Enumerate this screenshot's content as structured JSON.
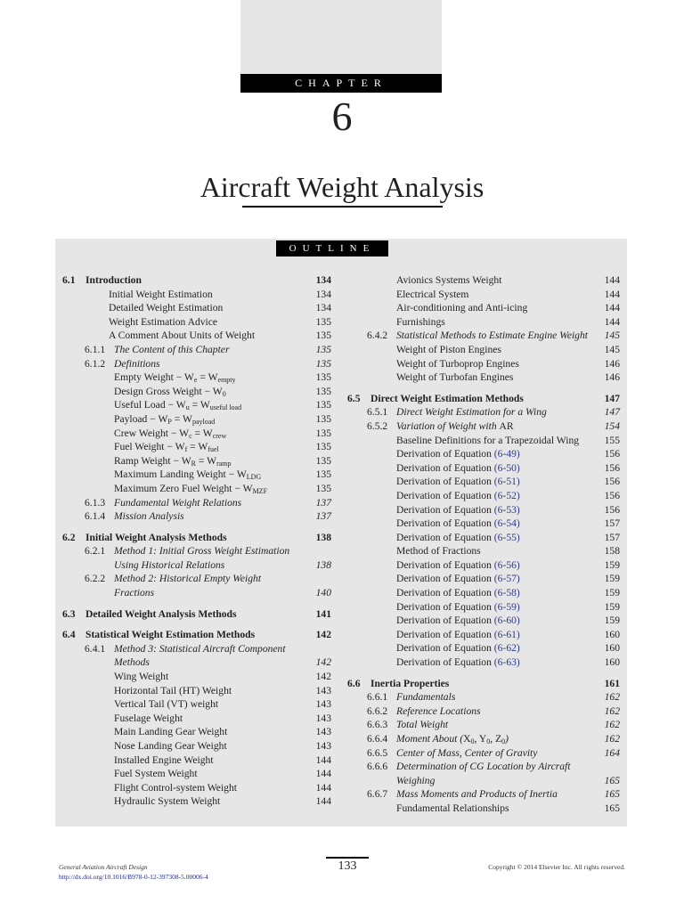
{
  "header": {
    "chapter_label": "CHAPTER",
    "chapter_number": "6",
    "title": "Aircraft Weight Analysis"
  },
  "outline": {
    "label": "OUTLINE",
    "colors": {
      "link": "#2b3a8f",
      "panel": "#e6e6e6"
    },
    "left": [
      {
        "type": "h",
        "num": "6.1",
        "segs": [
          {
            "t": "Introduction"
          }
        ],
        "page": "134"
      },
      {
        "type": "e",
        "indent": 1,
        "segs": [
          {
            "t": "Initial Weight Estimation"
          }
        ],
        "page": "134"
      },
      {
        "type": "e",
        "indent": 1,
        "segs": [
          {
            "t": "Detailed Weight Estimation"
          }
        ],
        "page": "134"
      },
      {
        "type": "e",
        "indent": 1,
        "segs": [
          {
            "t": "Weight Estimation Advice"
          }
        ],
        "page": "135"
      },
      {
        "type": "e",
        "indent": 1,
        "segs": [
          {
            "t": "A Comment About Units of Weight"
          }
        ],
        "page": "135"
      },
      {
        "type": "s",
        "num": "6.1.1",
        "segs": [
          {
            "t": "The Content of this Chapter"
          }
        ],
        "page": "135"
      },
      {
        "type": "s",
        "num": "6.1.2",
        "segs": [
          {
            "t": "Definitions"
          }
        ],
        "page": "135"
      },
      {
        "type": "e",
        "indent": 2,
        "segs": [
          {
            "t": "Empty Weight − W"
          },
          {
            "sub": "e"
          },
          {
            "t": " = W"
          },
          {
            "sub": "empty"
          }
        ],
        "page": "135"
      },
      {
        "type": "e",
        "indent": 2,
        "segs": [
          {
            "t": "Design Gross Weight − W"
          },
          {
            "sub": "0"
          }
        ],
        "page": "135"
      },
      {
        "type": "e",
        "indent": 2,
        "segs": [
          {
            "t": "Useful Load − W"
          },
          {
            "sub": "u"
          },
          {
            "t": " = W"
          },
          {
            "sub": "useful load"
          }
        ],
        "page": "135"
      },
      {
        "type": "e",
        "indent": 2,
        "segs": [
          {
            "t": "Payload − W"
          },
          {
            "sub": "P"
          },
          {
            "t": " = W"
          },
          {
            "sub": "payload"
          }
        ],
        "page": "135"
      },
      {
        "type": "e",
        "indent": 2,
        "segs": [
          {
            "t": "Crew Weight − W"
          },
          {
            "sub": "c"
          },
          {
            "t": " = W"
          },
          {
            "sub": "crew"
          }
        ],
        "page": "135"
      },
      {
        "type": "e",
        "indent": 2,
        "segs": [
          {
            "t": "Fuel Weight − W"
          },
          {
            "sub": "f"
          },
          {
            "t": " = W"
          },
          {
            "sub": "fuel"
          }
        ],
        "page": "135"
      },
      {
        "type": "e",
        "indent": 2,
        "segs": [
          {
            "t": "Ramp Weight − W"
          },
          {
            "sub": "R"
          },
          {
            "t": " = W"
          },
          {
            "sub": "ramp"
          }
        ],
        "page": "135"
      },
      {
        "type": "e",
        "indent": 2,
        "segs": [
          {
            "t": "Maximum Landing Weight − W"
          },
          {
            "sub": "LDG"
          }
        ],
        "page": "135"
      },
      {
        "type": "e",
        "indent": 2,
        "segs": [
          {
            "t": "Maximum Zero Fuel Weight − W"
          },
          {
            "sub": "MZF"
          }
        ],
        "page": "135"
      },
      {
        "type": "s",
        "num": "6.1.3",
        "segs": [
          {
            "t": "Fundamental Weight Relations"
          }
        ],
        "page": "137"
      },
      {
        "type": "s",
        "num": "6.1.4",
        "segs": [
          {
            "t": "Mission Analysis"
          }
        ],
        "page": "137"
      },
      {
        "type": "h",
        "num": "6.2",
        "segs": [
          {
            "t": "Initial Weight Analysis Methods"
          }
        ],
        "page": "138"
      },
      {
        "type": "s",
        "num": "6.2.1",
        "segs": [
          {
            "t": "Method 1: Initial Gross Weight Estimation"
          }
        ],
        "page": ""
      },
      {
        "type": "s",
        "num": "",
        "cont": true,
        "segs": [
          {
            "t": "Using Historical Relations"
          }
        ],
        "page": "138"
      },
      {
        "type": "s",
        "num": "6.2.2",
        "segs": [
          {
            "t": "Method 2: Historical Empty Weight"
          }
        ],
        "page": ""
      },
      {
        "type": "s",
        "num": "",
        "cont": true,
        "segs": [
          {
            "t": "Fractions"
          }
        ],
        "page": "140"
      },
      {
        "type": "h",
        "num": "6.3",
        "segs": [
          {
            "t": "Detailed Weight Analysis Methods"
          }
        ],
        "page": "141"
      },
      {
        "type": "h",
        "num": "6.4",
        "segs": [
          {
            "t": "Statistical Weight Estimation Methods"
          }
        ],
        "page": "142"
      },
      {
        "type": "s",
        "num": "6.4.1",
        "segs": [
          {
            "t": "Method 3: Statistical Aircraft Component"
          }
        ],
        "page": ""
      },
      {
        "type": "s",
        "num": "",
        "cont": true,
        "segs": [
          {
            "t": "Methods"
          }
        ],
        "page": "142"
      },
      {
        "type": "e",
        "indent": 2,
        "segs": [
          {
            "t": "Wing Weight"
          }
        ],
        "page": "142"
      },
      {
        "type": "e",
        "indent": 2,
        "segs": [
          {
            "t": "Horizontal Tail (HT) Weight"
          }
        ],
        "page": "143"
      },
      {
        "type": "e",
        "indent": 2,
        "segs": [
          {
            "t": "Vertical Tail (VT) weight"
          }
        ],
        "page": "143"
      },
      {
        "type": "e",
        "indent": 2,
        "segs": [
          {
            "t": "Fuselage Weight"
          }
        ],
        "page": "143"
      },
      {
        "type": "e",
        "indent": 2,
        "segs": [
          {
            "t": "Main Landing Gear Weight"
          }
        ],
        "page": "143"
      },
      {
        "type": "e",
        "indent": 2,
        "segs": [
          {
            "t": "Nose Landing Gear Weight"
          }
        ],
        "page": "143"
      },
      {
        "type": "e",
        "indent": 2,
        "segs": [
          {
            "t": "Installed Engine Weight"
          }
        ],
        "page": "144"
      },
      {
        "type": "e",
        "indent": 2,
        "segs": [
          {
            "t": "Fuel System Weight"
          }
        ],
        "page": "144"
      },
      {
        "type": "e",
        "indent": 2,
        "segs": [
          {
            "t": "Flight Control-system Weight"
          }
        ],
        "page": "144"
      },
      {
        "type": "e",
        "indent": 2,
        "segs": [
          {
            "t": "Hydraulic System Weight"
          }
        ],
        "page": "144"
      }
    ],
    "right": [
      {
        "type": "e",
        "indent": 2,
        "segs": [
          {
            "t": "Avionics Systems Weight"
          }
        ],
        "page": "144"
      },
      {
        "type": "e",
        "indent": 2,
        "segs": [
          {
            "t": "Electrical System"
          }
        ],
        "page": "144"
      },
      {
        "type": "e",
        "indent": 2,
        "segs": [
          {
            "t": "Air-conditioning and Anti-icing"
          }
        ],
        "page": "144"
      },
      {
        "type": "e",
        "indent": 2,
        "segs": [
          {
            "t": "Furnishings"
          }
        ],
        "page": "144"
      },
      {
        "type": "s",
        "num": "6.4.2",
        "segs": [
          {
            "t": "Statistical Methods to Estimate Engine Weight"
          }
        ],
        "page": "145"
      },
      {
        "type": "e",
        "indent": 2,
        "segs": [
          {
            "t": "Weight of Piston Engines"
          }
        ],
        "page": "145"
      },
      {
        "type": "e",
        "indent": 2,
        "segs": [
          {
            "t": "Weight of Turboprop Engines"
          }
        ],
        "page": "146"
      },
      {
        "type": "e",
        "indent": 2,
        "segs": [
          {
            "t": "Weight of Turbofan Engines"
          }
        ],
        "page": "146"
      },
      {
        "type": "h",
        "num": "6.5",
        "segs": [
          {
            "t": "Direct Weight Estimation Methods"
          }
        ],
        "page": "147"
      },
      {
        "type": "s",
        "num": "6.5.1",
        "segs": [
          {
            "t": "Direct Weight Estimation for a Wing"
          }
        ],
        "page": "147"
      },
      {
        "type": "s",
        "num": "6.5.2",
        "segs": [
          {
            "t": "Variation of Weight with "
          },
          {
            "up": "AR"
          }
        ],
        "page": "154"
      },
      {
        "type": "e",
        "indent": 2,
        "segs": [
          {
            "t": "Baseline Definitions for a Trapezoidal Wing"
          }
        ],
        "page": "155"
      },
      {
        "type": "e",
        "indent": 2,
        "segs": [
          {
            "t": "Derivation of Equation "
          },
          {
            "link": "(6-49)"
          }
        ],
        "page": "156"
      },
      {
        "type": "e",
        "indent": 2,
        "segs": [
          {
            "t": "Derivation of Equation "
          },
          {
            "link": "(6-50)"
          }
        ],
        "page": "156"
      },
      {
        "type": "e",
        "indent": 2,
        "segs": [
          {
            "t": "Derivation of Equation "
          },
          {
            "link": "(6-51)"
          }
        ],
        "page": "156"
      },
      {
        "type": "e",
        "indent": 2,
        "segs": [
          {
            "t": "Derivation of Equation "
          },
          {
            "link": "(6-52)"
          }
        ],
        "page": "156"
      },
      {
        "type": "e",
        "indent": 2,
        "segs": [
          {
            "t": "Derivation of Equation "
          },
          {
            "link": "(6-53)"
          }
        ],
        "page": "156"
      },
      {
        "type": "e",
        "indent": 2,
        "segs": [
          {
            "t": "Derivation of Equation "
          },
          {
            "link": "(6-54)"
          }
        ],
        "page": "157"
      },
      {
        "type": "e",
        "indent": 2,
        "segs": [
          {
            "t": "Derivation of Equation "
          },
          {
            "link": "(6-55)"
          }
        ],
        "page": "157"
      },
      {
        "type": "e",
        "indent": 2,
        "segs": [
          {
            "t": "Method of Fractions"
          }
        ],
        "page": "158"
      },
      {
        "type": "e",
        "indent": 2,
        "segs": [
          {
            "t": "Derivation of Equation "
          },
          {
            "link": "(6-56)"
          }
        ],
        "page": "159"
      },
      {
        "type": "e",
        "indent": 2,
        "segs": [
          {
            "t": "Derivation of Equation "
          },
          {
            "link": "(6-57)"
          }
        ],
        "page": "159"
      },
      {
        "type": "e",
        "indent": 2,
        "segs": [
          {
            "t": "Derivation of Equation "
          },
          {
            "link": "(6-58)"
          }
        ],
        "page": "159"
      },
      {
        "type": "e",
        "indent": 2,
        "segs": [
          {
            "t": "Derivation of Equation "
          },
          {
            "link": "(6-59)"
          }
        ],
        "page": "159"
      },
      {
        "type": "e",
        "indent": 2,
        "segs": [
          {
            "t": "Derivation of Equation "
          },
          {
            "link": "(6-60)"
          }
        ],
        "page": "159"
      },
      {
        "type": "e",
        "indent": 2,
        "segs": [
          {
            "t": "Derivation of Equation "
          },
          {
            "link": "(6-61)"
          }
        ],
        "page": "160"
      },
      {
        "type": "e",
        "indent": 2,
        "segs": [
          {
            "t": "Derivation of Equation "
          },
          {
            "link": "(6-62)"
          }
        ],
        "page": "160"
      },
      {
        "type": "e",
        "indent": 2,
        "segs": [
          {
            "t": "Derivation of Equation "
          },
          {
            "link": "(6-63)"
          }
        ],
        "page": "160"
      },
      {
        "type": "h",
        "num": "6.6",
        "segs": [
          {
            "t": "Inertia Properties"
          }
        ],
        "page": "161"
      },
      {
        "type": "s",
        "num": "6.6.1",
        "segs": [
          {
            "t": "Fundamentals"
          }
        ],
        "page": "162"
      },
      {
        "type": "s",
        "num": "6.6.2",
        "segs": [
          {
            "t": "Reference Locations"
          }
        ],
        "page": "162"
      },
      {
        "type": "s",
        "num": "6.6.3",
        "segs": [
          {
            "t": "Total Weight"
          }
        ],
        "page": "162"
      },
      {
        "type": "s",
        "num": "6.6.4",
        "segs": [
          {
            "t": "Moment About ("
          },
          {
            "up": "X"
          },
          {
            "sub": "0"
          },
          {
            "up": ", Y"
          },
          {
            "sub": "0"
          },
          {
            "up": ", Z"
          },
          {
            "sub": "0"
          },
          {
            "t": ")"
          }
        ],
        "page": "162"
      },
      {
        "type": "s",
        "num": "6.6.5",
        "segs": [
          {
            "t": "Center of Mass, Center of Gravity"
          }
        ],
        "page": "164"
      },
      {
        "type": "s",
        "num": "6.6.6",
        "segs": [
          {
            "t": "Determination of CG Location by Aircraft"
          }
        ],
        "page": ""
      },
      {
        "type": "s",
        "num": "",
        "cont": true,
        "segs": [
          {
            "t": "Weighing"
          }
        ],
        "page": "165"
      },
      {
        "type": "s",
        "num": "6.6.7",
        "segs": [
          {
            "t": "Mass Moments and Products of Inertia"
          }
        ],
        "page": "165"
      },
      {
        "type": "e",
        "indent": 2,
        "segs": [
          {
            "t": "Fundamental Relationships"
          }
        ],
        "page": "165"
      }
    ]
  },
  "footer": {
    "book_title": "General Aviation Aircraft Design",
    "doi": "http://dx.doi.org/10.1016/B978-0-12-397308-5.00006-4",
    "page_number": "133",
    "copyright": "Copyright © 2014 Elsevier Inc. All rights reserved."
  }
}
